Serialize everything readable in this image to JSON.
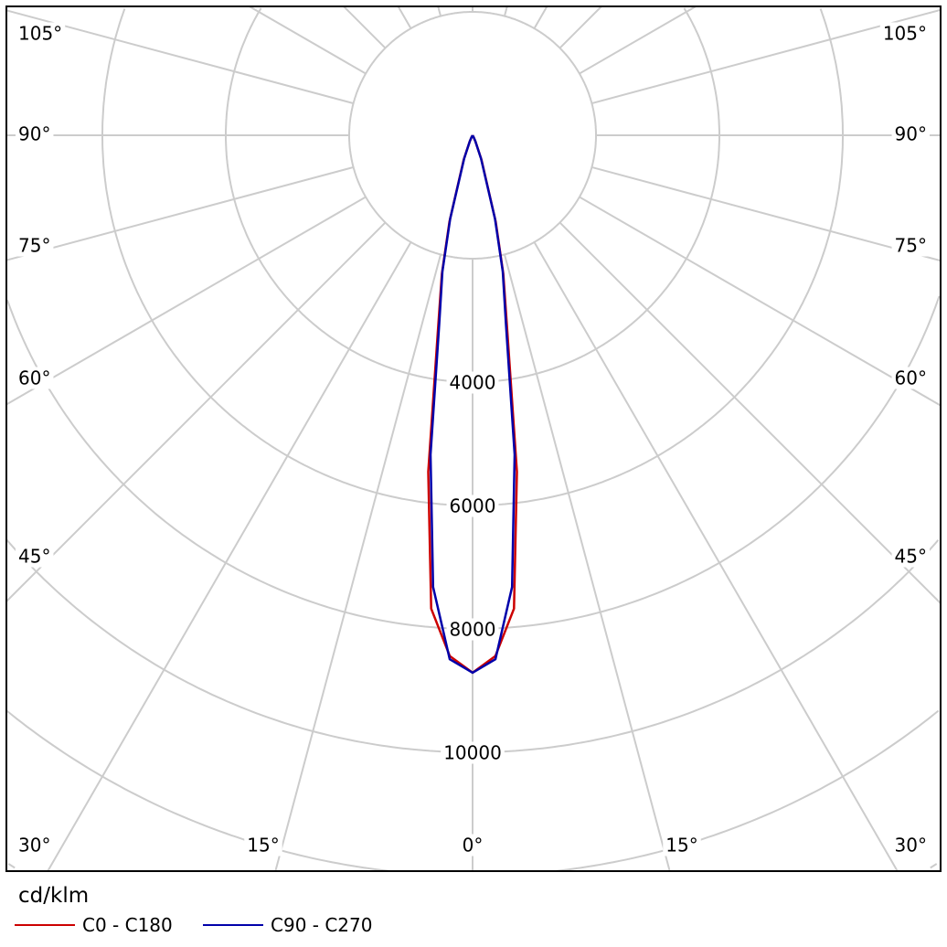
{
  "chart_data": {
    "type": "polar",
    "unit": "cd/klm",
    "radial_ticks": [
      2000,
      4000,
      6000,
      8000,
      10000,
      12000,
      14000,
      16000
    ],
    "radial_tick_labels": [
      "4000",
      "6000",
      "8000",
      "10000"
    ],
    "angle_labels_left": [
      "105°",
      "90°",
      "75°",
      "60°",
      "45°",
      "30°",
      "15°"
    ],
    "angle_labels_right": [
      "105°",
      "90°",
      "75°",
      "60°",
      "45°",
      "30°",
      "15°"
    ],
    "angle_label_bottom": "0°",
    "grid": true,
    "legend_position": "bottom-left",
    "angles": [
      0,
      2.5,
      5,
      7.5,
      10,
      12.5,
      15,
      20,
      25,
      30,
      45,
      60,
      75,
      90
    ],
    "series": [
      {
        "name": "C0 - C180",
        "color": "#cc0000",
        "values": [
          8710,
          8450,
          7700,
          5500,
          3250,
          2300,
          1450,
          420,
          110,
          30,
          0,
          0,
          0,
          0
        ]
      },
      {
        "name": "C90 - C270",
        "color": "#0000aa",
        "values": [
          8710,
          8500,
          7350,
          5220,
          3110,
          2260,
          1400,
          400,
          100,
          30,
          0,
          0,
          0,
          0
        ]
      }
    ]
  }
}
